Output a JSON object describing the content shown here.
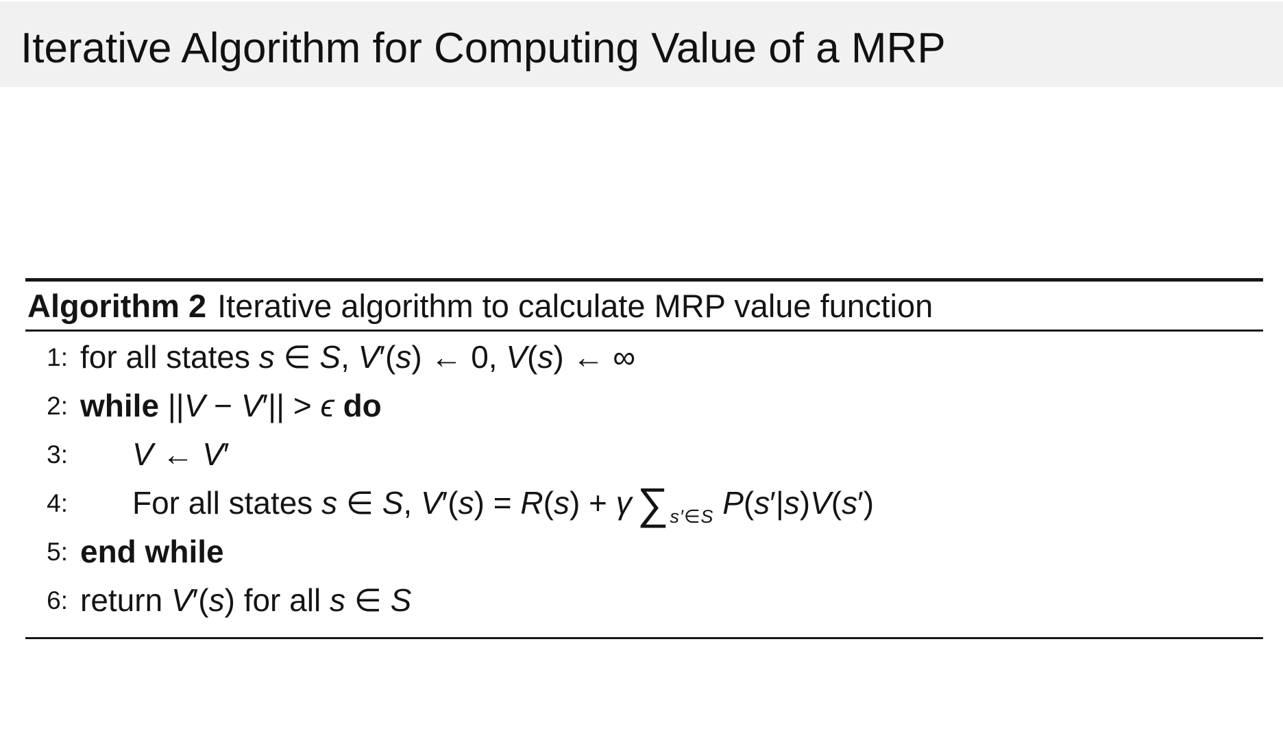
{
  "slide": {
    "title": "Iterative Algorithm for Computing Value of a MRP",
    "header_bg": "#f1f1f1",
    "text_color": "#141414",
    "rule_color": "#161616"
  },
  "algorithm": {
    "caption_label": "Algorithm 2",
    "caption_text": "Iterative algorithm to calculate MRP value function",
    "lines": [
      {
        "number": "1:",
        "indent": 0,
        "segments": [
          {
            "t": "for all states ",
            "s": "rm"
          },
          {
            "t": "s",
            "s": "it"
          },
          {
            "t": " ∈ ",
            "s": "rm"
          },
          {
            "t": "S",
            "s": "it"
          },
          {
            "t": ", ",
            "s": "rm"
          },
          {
            "t": "V",
            "s": "it"
          },
          {
            "t": "′(",
            "s": "rm"
          },
          {
            "t": "s",
            "s": "it"
          },
          {
            "t": ") ← 0, ",
            "s": "rm"
          },
          {
            "t": "V",
            "s": "it"
          },
          {
            "t": "(",
            "s": "rm"
          },
          {
            "t": "s",
            "s": "it"
          },
          {
            "t": ") ← ∞",
            "s": "rm"
          }
        ]
      },
      {
        "number": "2:",
        "indent": 0,
        "segments": [
          {
            "t": "while ",
            "s": "bf"
          },
          {
            "t": "||",
            "s": "rm"
          },
          {
            "t": "V",
            "s": "it"
          },
          {
            "t": " − ",
            "s": "rm"
          },
          {
            "t": "V",
            "s": "it"
          },
          {
            "t": "′|| > ",
            "s": "rm"
          },
          {
            "t": "ϵ",
            "s": "it"
          },
          {
            "t": " ",
            "s": "rm"
          },
          {
            "t": "do",
            "s": "bf"
          }
        ]
      },
      {
        "number": "3:",
        "indent": 1,
        "segments": [
          {
            "t": "V",
            "s": "it"
          },
          {
            "t": " ← ",
            "s": "rm"
          },
          {
            "t": "V",
            "s": "it"
          },
          {
            "t": "′",
            "s": "rm"
          }
        ]
      },
      {
        "number": "4:",
        "indent": 1,
        "segments": [
          {
            "t": "For all states ",
            "s": "rm"
          },
          {
            "t": "s",
            "s": "it"
          },
          {
            "t": " ∈ ",
            "s": "rm"
          },
          {
            "t": "S",
            "s": "it"
          },
          {
            "t": ", ",
            "s": "rm"
          },
          {
            "t": "V",
            "s": "it"
          },
          {
            "t": "′(",
            "s": "rm"
          },
          {
            "t": "s",
            "s": "it"
          },
          {
            "t": ") = ",
            "s": "rm"
          },
          {
            "t": "R",
            "s": "it"
          },
          {
            "t": "(",
            "s": "rm"
          },
          {
            "t": "s",
            "s": "it"
          },
          {
            "t": ") + ",
            "s": "rm"
          },
          {
            "t": "γ",
            "s": "it"
          },
          {
            "t": "∑",
            "s": "sum"
          },
          {
            "t": "s′∈S",
            "s": "sub"
          },
          {
            "t": " ",
            "s": "rm"
          },
          {
            "t": "P",
            "s": "it"
          },
          {
            "t": "(",
            "s": "rm"
          },
          {
            "t": "s",
            "s": "it"
          },
          {
            "t": "′|",
            "s": "rm"
          },
          {
            "t": "s",
            "s": "it"
          },
          {
            "t": ")",
            "s": "rm"
          },
          {
            "t": "V",
            "s": "it"
          },
          {
            "t": "(",
            "s": "rm"
          },
          {
            "t": "s",
            "s": "it"
          },
          {
            "t": "′)",
            "s": "rm"
          }
        ]
      },
      {
        "number": "5:",
        "indent": 0,
        "segments": [
          {
            "t": "end while",
            "s": "bf"
          }
        ]
      },
      {
        "number": "6:",
        "indent": 0,
        "segments": [
          {
            "t": "return ",
            "s": "rm"
          },
          {
            "t": "V",
            "s": "it"
          },
          {
            "t": "′(",
            "s": "rm"
          },
          {
            "t": "s",
            "s": "it"
          },
          {
            "t": ") for all ",
            "s": "rm"
          },
          {
            "t": "s",
            "s": "it"
          },
          {
            "t": " ∈ ",
            "s": "rm"
          },
          {
            "t": "S",
            "s": "it"
          }
        ]
      }
    ]
  }
}
